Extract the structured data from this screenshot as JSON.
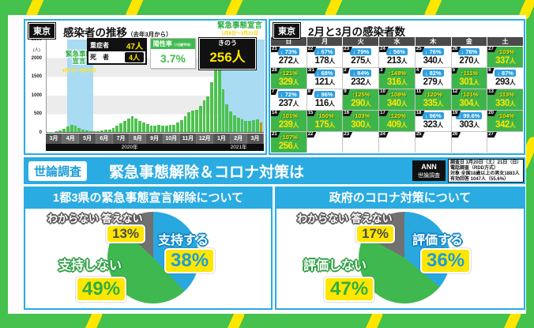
{
  "frame": {
    "bg_green": "#45c14d",
    "stripe_yellow": "#ffe600",
    "accent_cyan": "#2aabe2",
    "highlight_yellow": "#ffe600",
    "cell_green": "#3eb54b"
  },
  "icons": {
    "up_arrow": "↑",
    "down_arrow": "↓"
  },
  "trend_panel": {
    "region_badge": "東京",
    "title": "感染者の推移",
    "title_note": "（去年3月から）",
    "y_unit": "(人)",
    "band1_label": "緊急事態宣言",
    "band1_dates": "4月7日～5月25日",
    "band2_label": "緊急事態宣言",
    "band2_dates": "1月8日～3月21日",
    "stats": {
      "severe_label": "重症者",
      "severe_value": "47人",
      "deaths_label": "死　者",
      "deaths_value": "4人",
      "positivity_label": "陽性率",
      "positivity_note": "（7日間平均）",
      "positivity_value": "3.7%",
      "yesterday_label": "きのう",
      "yesterday_value": "256人"
    }
  },
  "calendar_panel": {
    "region_badge": "東京",
    "title": "2月と3月の感染者数",
    "unit": "人",
    "weekdays": [
      "日",
      "月",
      "火",
      "水",
      "木",
      "金",
      "土"
    ],
    "rows": [
      [
        {
          "d": "21",
          "dir": "down",
          "pct": "73%",
          "n": "272"
        },
        {
          "d": "22",
          "dir": "down",
          "pct": "67%",
          "n": "178"
        },
        {
          "d": "23",
          "dir": "down",
          "pct": "79%",
          "n": "275"
        },
        {
          "d": "24",
          "dir": "down",
          "pct": "56%",
          "n": "213"
        },
        {
          "d": "25",
          "dir": "down",
          "pct": "76%",
          "n": "340"
        },
        {
          "d": "26",
          "dir": "down",
          "pct": "76%",
          "n": "270"
        },
        {
          "d": "27",
          "dir": "up",
          "pct": "103%",
          "n": "337"
        }
      ],
      [
        {
          "d": "28",
          "dir": "up",
          "pct": "121%",
          "n": "329"
        },
        {
          "d": "3/1",
          "dir": "down",
          "pct": "68%",
          "n": "121"
        },
        {
          "d": "2",
          "dir": "down",
          "pct": "84%",
          "n": "232"
        },
        {
          "d": "3",
          "dir": "up",
          "pct": "148%",
          "n": "316"
        },
        {
          "d": "4",
          "dir": "down",
          "pct": "82%",
          "n": "279"
        },
        {
          "d": "5",
          "dir": "up",
          "pct": "111%",
          "n": "301"
        },
        {
          "d": "6",
          "dir": "down",
          "pct": "87%",
          "n": "293"
        }
      ],
      [
        {
          "d": "7",
          "dir": "down",
          "pct": "72%",
          "n": "237"
        },
        {
          "d": "8",
          "dir": "down",
          "pct": "96%",
          "n": "116"
        },
        {
          "d": "9",
          "dir": "up",
          "pct": "125%",
          "n": "290"
        },
        {
          "d": "10",
          "dir": "up",
          "pct": "108%",
          "n": "340"
        },
        {
          "d": "11",
          "dir": "up",
          "pct": "120%",
          "n": "335"
        },
        {
          "d": "12",
          "dir": "up",
          "pct": "101%",
          "n": "304"
        },
        {
          "d": "13",
          "dir": "up",
          "pct": "113%",
          "n": "330"
        }
      ],
      [
        {
          "d": "14",
          "dir": "up",
          "pct": "101%",
          "n": "239"
        },
        {
          "d": "15",
          "dir": "up",
          "pct": "150%",
          "n": "175"
        },
        {
          "d": "16",
          "dir": "up",
          "pct": "103%",
          "n": "300"
        },
        {
          "d": "17",
          "dir": "up",
          "pct": "120%",
          "n": "409"
        },
        {
          "d": "18",
          "dir": "down",
          "pct": "96%",
          "n": "323"
        },
        {
          "d": "19",
          "dir": "down",
          "pct": "99.6%",
          "n": "303"
        },
        {
          "d": "20",
          "dir": "up",
          "pct": "104%",
          "n": "342"
        }
      ],
      [
        {
          "d": "21",
          "dir": "up",
          "pct": "107%",
          "n": "256"
        },
        {
          "d": "22",
          "dir": "none"
        },
        {
          "d": "23",
          "dir": "none"
        },
        {
          "d": "24",
          "dir": "none"
        },
        {
          "d": "25",
          "dir": "none"
        },
        {
          "d": "26",
          "dir": "none"
        },
        {
          "d": "27",
          "dir": "none"
        }
      ]
    ]
  },
  "poll_strip": {
    "badge": "世論調査",
    "title": "緊急事態解除＆コロナ対策は",
    "ann_line1": "ANN",
    "ann_line2": "世論調査",
    "survey_lines": [
      "調査日 3月20日（土）21日（日）",
      "電話調査（RDD方式）",
      "対象 全国18歳以上の男女1883人",
      "有効回答 1047人（55.6%）"
    ]
  },
  "poll_left": {
    "title": "1都3県の緊急事態宣言解除について",
    "dk_label": "わからない 答えない",
    "dk_value": "13%",
    "yes_label": "支持する",
    "yes_value": "38%",
    "no_label": "支持しない",
    "no_value": "49%"
  },
  "poll_right": {
    "title": "政府のコロナ対策について",
    "dk_label": "わからない 答えない",
    "dk_value": "17%",
    "yes_label": "評価する",
    "yes_value": "36%",
    "no_label": "評価しない",
    "no_value": "47%"
  },
  "chart_data": [
    {
      "type": "bar",
      "title": "東京 感染者の推移（去年3月から）",
      "ylabel": "人",
      "ylim": [
        0,
        2500
      ],
      "yticks": [
        0,
        500,
        1000,
        1500,
        2000,
        2500
      ],
      "categories": [
        "3月",
        "4月",
        "5月",
        "6月",
        "7月",
        "8月",
        "9月",
        "10月",
        "11月",
        "12月",
        "1月",
        "2月",
        "3月"
      ],
      "years": [
        "2020年",
        "2021年"
      ],
      "values": [
        5,
        10,
        18,
        35,
        90,
        150,
        200,
        160,
        110,
        60,
        35,
        20,
        15,
        25,
        40,
        55,
        60,
        105,
        165,
        240,
        290,
        360,
        430,
        360,
        295,
        250,
        205,
        180,
        160,
        190,
        175,
        165,
        185,
        200,
        255,
        320,
        420,
        520,
        570,
        600,
        690,
        850,
        950,
        1340,
        2520,
        1810,
        1150,
        750,
        560,
        440,
        380,
        330,
        290,
        300,
        320,
        340,
        256
      ],
      "annotations": [
        {
          "label": "緊急事態宣言",
          "dates": "4月7日～5月25日"
        },
        {
          "label": "緊急事態宣言",
          "dates": "1月8日～3月21日"
        }
      ],
      "latest_value": 256
    },
    {
      "type": "pie",
      "title": "1都3県の緊急事態宣言解除について",
      "labels": [
        "支持する",
        "支持しない",
        "わからない・答えない"
      ],
      "values": [
        38,
        49,
        13
      ],
      "colors": [
        "#29a8e0",
        "#3fb94f",
        "#717171"
      ]
    },
    {
      "type": "pie",
      "title": "政府のコロナ対策について",
      "labels": [
        "評価する",
        "評価しない",
        "わからない・答えない"
      ],
      "values": [
        36,
        47,
        17
      ],
      "colors": [
        "#29a8e0",
        "#3fb94f",
        "#717171"
      ]
    }
  ]
}
